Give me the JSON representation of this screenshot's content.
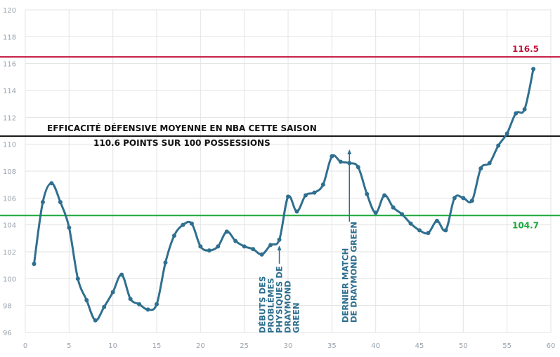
{
  "chart_data": {
    "type": "line",
    "xlim": [
      0,
      60
    ],
    "ylim": [
      96,
      120
    ],
    "x_ticks": [
      0,
      5,
      10,
      15,
      20,
      25,
      30,
      35,
      40,
      45,
      50,
      55,
      60
    ],
    "y_ticks": [
      96,
      98,
      100,
      102,
      104,
      106,
      108,
      110,
      112,
      114,
      116,
      118,
      120
    ],
    "grid": true,
    "series": [
      {
        "color": "#2f6f8f",
        "x": [
          1,
          2,
          3,
          4,
          5,
          6,
          7,
          8,
          9,
          10,
          11,
          12,
          13,
          14,
          15,
          16,
          17,
          18,
          19,
          20,
          21,
          22,
          23,
          24,
          25,
          26,
          27,
          28,
          29,
          30,
          31,
          32,
          33,
          34,
          35,
          36,
          37,
          38,
          39,
          40,
          41,
          42,
          43,
          44,
          45,
          46,
          47,
          48,
          49,
          50,
          51,
          52,
          53,
          54,
          55,
          56,
          57,
          58
        ],
        "y": [
          101.1,
          105.7,
          107.1,
          105.7,
          103.8,
          100.0,
          98.4,
          96.9,
          97.9,
          99.0,
          100.3,
          98.5,
          98.1,
          97.7,
          98.1,
          101.2,
          103.2,
          104.0,
          104.1,
          102.4,
          102.1,
          102.4,
          103.5,
          102.8,
          102.4,
          102.2,
          101.8,
          102.5,
          102.9,
          106.1,
          105.0,
          106.2,
          106.4,
          107.0,
          109.1,
          108.7,
          108.6,
          108.3,
          106.3,
          104.9,
          106.2,
          105.3,
          104.8,
          104.1,
          103.6,
          103.4,
          104.3,
          103.6,
          106.0,
          106.0,
          105.8,
          108.2,
          108.6,
          109.9,
          110.8,
          112.3,
          112.6,
          115.6
        ]
      }
    ],
    "reference_lines": [
      {
        "y": 116.5,
        "color": "#c2113a",
        "label": "116.5"
      },
      {
        "y": 110.6,
        "color": "#111111",
        "label": ""
      },
      {
        "y": 104.7,
        "color": "#1aa83a",
        "label": "104.7"
      }
    ],
    "annotations": [
      {
        "x": 29,
        "lines": [
          "DÉBUTS DES",
          "PROBLÈMES",
          "PHYSIQUES DE",
          "DRAYMOND",
          "GREEN"
        ]
      },
      {
        "x": 37,
        "lines": [
          "DERNIER MATCH",
          "DE DRAYMOND GREEN"
        ]
      }
    ],
    "texts": {
      "avg_title": "EFFICACITÉ DÉFENSIVE MOYENNE  EN NBA CETTE SAISON",
      "avg_subtitle": "110.6 POINTS SUR 100 POSSESSIONS"
    }
  }
}
